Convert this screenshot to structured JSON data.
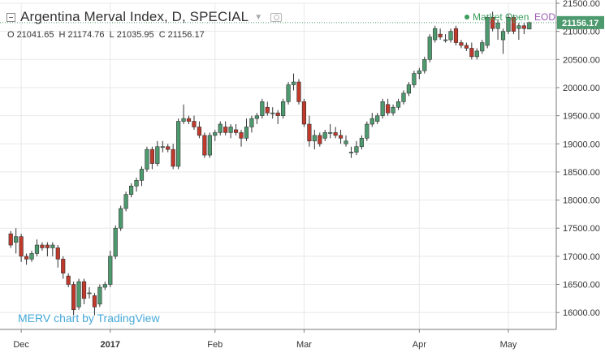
{
  "header": {
    "title": "Argentina Merval Index, D, SPECIAL",
    "ohlc": {
      "o_label": "O",
      "o": "21041.65",
      "h_label": "H",
      "h": "21174.76",
      "l_label": "L",
      "l": "21035.95",
      "c_label": "C",
      "c": "21156.17"
    },
    "market_status": "Market Open",
    "eod": "EOD"
  },
  "watermark": "MERV chart by TradingView",
  "colors": {
    "up": "#4e9a6f",
    "down": "#c0392b",
    "last_price_bg": "#4e9a6f",
    "watermark": "#46a9d8",
    "grid": "#e8e8e8",
    "axis": "#7a7a7a"
  },
  "chart_data": {
    "type": "candlestick",
    "title": "Argentina Merval Index, D, SPECIAL",
    "ylim": [
      15700,
      21500
    ],
    "y_ticks": [
      "16000.00",
      "16500.00",
      "17000.00",
      "17500.00",
      "18000.00",
      "18500.00",
      "19000.00",
      "19500.00",
      "20000.00",
      "20500.00",
      "21000.00",
      "21500.00"
    ],
    "x_tick_labels": [
      {
        "label": "Dec",
        "index": 2,
        "bold": false
      },
      {
        "label": "2017",
        "index": 19,
        "bold": true
      },
      {
        "label": "Feb",
        "index": 39,
        "bold": false
      },
      {
        "label": "Mar",
        "index": 56,
        "bold": false
      },
      {
        "label": "Apr",
        "index": 78,
        "bold": false
      },
      {
        "label": "May",
        "index": 95,
        "bold": false
      }
    ],
    "last_price": "21156.17",
    "grid": true,
    "candles": [
      [
        17400,
        17450,
        17150,
        17200
      ],
      [
        17250,
        17500,
        17050,
        17350
      ],
      [
        17350,
        17400,
        16900,
        17000
      ],
      [
        17000,
        17050,
        16850,
        16950
      ],
      [
        16950,
        17100,
        16900,
        17050
      ],
      [
        17050,
        17300,
        17000,
        17200
      ],
      [
        17200,
        17250,
        17100,
        17150
      ],
      [
        17200,
        17250,
        17000,
        17150
      ],
      [
        17150,
        17250,
        17000,
        17200
      ],
      [
        17150,
        17200,
        16800,
        16950
      ],
      [
        16950,
        17000,
        16600,
        16700
      ],
      [
        16650,
        16700,
        16450,
        16500
      ],
      [
        16500,
        16550,
        15950,
        16050
      ],
      [
        16100,
        16600,
        16050,
        16550
      ],
      [
        16550,
        16600,
        16150,
        16250
      ],
      [
        16350,
        16450,
        16250,
        16350
      ],
      [
        16300,
        16350,
        15950,
        16100
      ],
      [
        16150,
        16500,
        16100,
        16450
      ],
      [
        16450,
        16550,
        16400,
        16500
      ],
      [
        16500,
        17100,
        16450,
        17000
      ],
      [
        17000,
        17550,
        16950,
        17500
      ],
      [
        17500,
        17900,
        17450,
        17850
      ],
      [
        17850,
        18150,
        17800,
        18100
      ],
      [
        18100,
        18300,
        18050,
        18250
      ],
      [
        18250,
        18400,
        18150,
        18350
      ],
      [
        18350,
        18600,
        18250,
        18550
      ],
      [
        18550,
        18950,
        18500,
        18900
      ],
      [
        18900,
        18950,
        18550,
        18650
      ],
      [
        18650,
        19050,
        18600,
        18950
      ],
      [
        18950,
        19050,
        18850,
        18950
      ],
      [
        18950,
        19000,
        18850,
        18900
      ],
      [
        18900,
        19000,
        18550,
        18600
      ],
      [
        18600,
        19450,
        18550,
        19400
      ],
      [
        19400,
        19700,
        19350,
        19450
      ],
      [
        19450,
        19500,
        19350,
        19400
      ],
      [
        19400,
        19500,
        19250,
        19300
      ],
      [
        19300,
        19400,
        19100,
        19150
      ],
      [
        19150,
        19200,
        18750,
        18800
      ],
      [
        18800,
        19200,
        18750,
        19150
      ],
      [
        19150,
        19250,
        19050,
        19200
      ],
      [
        19200,
        19400,
        19150,
        19350
      ],
      [
        19300,
        19400,
        19150,
        19200
      ],
      [
        19200,
        19350,
        19100,
        19300
      ],
      [
        19250,
        19350,
        19150,
        19200
      ],
      [
        19200,
        19250,
        18950,
        19100
      ],
      [
        19100,
        19450,
        19050,
        19300
      ],
      [
        19300,
        19500,
        19200,
        19450
      ],
      [
        19450,
        19550,
        19350,
        19500
      ],
      [
        19500,
        19800,
        19450,
        19750
      ],
      [
        19650,
        19750,
        19500,
        19550
      ],
      [
        19550,
        19650,
        19450,
        19550
      ],
      [
        19550,
        19600,
        19350,
        19500
      ],
      [
        19500,
        19800,
        19450,
        19750
      ],
      [
        19750,
        20100,
        19700,
        20050
      ],
      [
        20050,
        20250,
        19950,
        20100
      ],
      [
        20100,
        20150,
        19700,
        19750
      ],
      [
        19750,
        19800,
        19300,
        19350
      ],
      [
        19350,
        19500,
        18950,
        19050
      ],
      [
        19050,
        19250,
        18900,
        19150
      ],
      [
        19150,
        19200,
        18950,
        19000
      ],
      [
        19100,
        19250,
        19050,
        19200
      ],
      [
        19200,
        19350,
        19100,
        19200
      ],
      [
        19200,
        19300,
        19100,
        19150
      ],
      [
        19150,
        19250,
        19000,
        19100
      ],
      [
        19000,
        19150,
        18950,
        19050
      ],
      [
        18850,
        18950,
        18750,
        18850
      ],
      [
        18850,
        19050,
        18800,
        18950
      ],
      [
        18950,
        19150,
        18900,
        19100
      ],
      [
        19100,
        19400,
        19050,
        19350
      ],
      [
        19350,
        19550,
        19300,
        19450
      ],
      [
        19400,
        19550,
        19350,
        19500
      ],
      [
        19500,
        19800,
        19450,
        19750
      ],
      [
        19700,
        19800,
        19500,
        19550
      ],
      [
        19550,
        19700,
        19500,
        19650
      ],
      [
        19650,
        19800,
        19600,
        19750
      ],
      [
        19750,
        19950,
        19700,
        19900
      ],
      [
        19900,
        20100,
        19850,
        20050
      ],
      [
        20050,
        20300,
        20000,
        20250
      ],
      [
        20250,
        20350,
        20150,
        20300
      ],
      [
        20300,
        20550,
        20250,
        20500
      ],
      [
        20500,
        20950,
        20450,
        20900
      ],
      [
        20850,
        21100,
        20800,
        21050
      ],
      [
        20950,
        21050,
        20850,
        20900
      ],
      [
        20850,
        20950,
        20800,
        20850
      ],
      [
        20850,
        21050,
        20800,
        21000
      ],
      [
        21050,
        21100,
        20750,
        20800
      ],
      [
        20800,
        20850,
        20700,
        20750
      ],
      [
        20750,
        20800,
        20650,
        20700
      ],
      [
        20700,
        20800,
        20500,
        20550
      ],
      [
        20550,
        20700,
        20500,
        20650
      ],
      [
        20650,
        20850,
        20600,
        20800
      ],
      [
        20750,
        21300,
        20700,
        21250
      ],
      [
        21250,
        21350,
        21000,
        21050
      ],
      [
        21050,
        21200,
        20850,
        21150
      ],
      [
        20850,
        21050,
        20600,
        21000
      ],
      [
        21000,
        21300,
        20950,
        21250
      ],
      [
        21250,
        21300,
        20950,
        21000
      ],
      [
        21050,
        21150,
        20850,
        21100
      ],
      [
        21100,
        21150,
        20950,
        21050
      ],
      [
        21041.65,
        21174.76,
        21035.95,
        21156.17
      ]
    ]
  }
}
